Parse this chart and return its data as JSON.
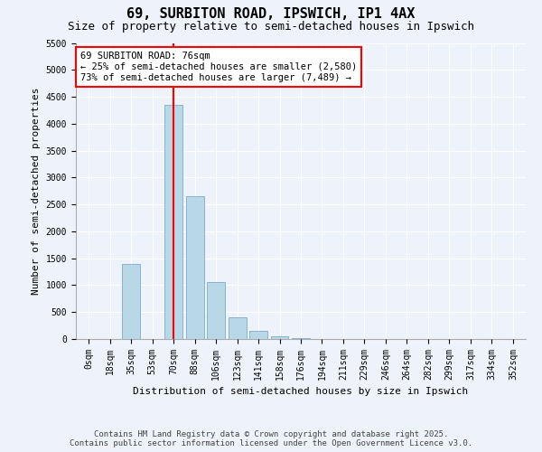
{
  "title1": "69, SURBITON ROAD, IPSWICH, IP1 4AX",
  "title2": "Size of property relative to semi-detached houses in Ipswich",
  "xlabel": "Distribution of semi-detached houses by size in Ipswich",
  "ylabel": "Number of semi-detached properties",
  "categories": [
    "0sqm",
    "18sqm",
    "35sqm",
    "53sqm",
    "70sqm",
    "88sqm",
    "106sqm",
    "123sqm",
    "141sqm",
    "158sqm",
    "176sqm",
    "194sqm",
    "211sqm",
    "229sqm",
    "246sqm",
    "264sqm",
    "282sqm",
    "299sqm",
    "317sqm",
    "334sqm",
    "352sqm"
  ],
  "values": [
    0,
    0,
    1400,
    0,
    4350,
    2650,
    1050,
    400,
    150,
    50,
    15,
    5,
    0,
    0,
    0,
    0,
    0,
    0,
    0,
    0,
    0
  ],
  "bar_color": "#b8d8e8",
  "bar_edge_color": "#8ab4cc",
  "vline_index": 4,
  "vline_color": "red",
  "annotation_text": "69 SURBITON ROAD: 76sqm\n← 25% of semi-detached houses are smaller (2,580)\n73% of semi-detached houses are larger (7,489) →",
  "annotation_box_facecolor": "white",
  "annotation_box_edgecolor": "red",
  "ylim_max": 5500,
  "yticks": [
    0,
    500,
    1000,
    1500,
    2000,
    2500,
    3000,
    3500,
    4000,
    4500,
    5000,
    5500
  ],
  "background_color": "#eef2fa",
  "grid_color": "white",
  "footer": "Contains HM Land Registry data © Crown copyright and database right 2025.\nContains public sector information licensed under the Open Government Licence v3.0.",
  "title1_fontsize": 11,
  "title2_fontsize": 9,
  "axis_label_fontsize": 8,
  "tick_fontsize": 7,
  "annotation_fontsize": 7.5,
  "footer_fontsize": 6.5
}
